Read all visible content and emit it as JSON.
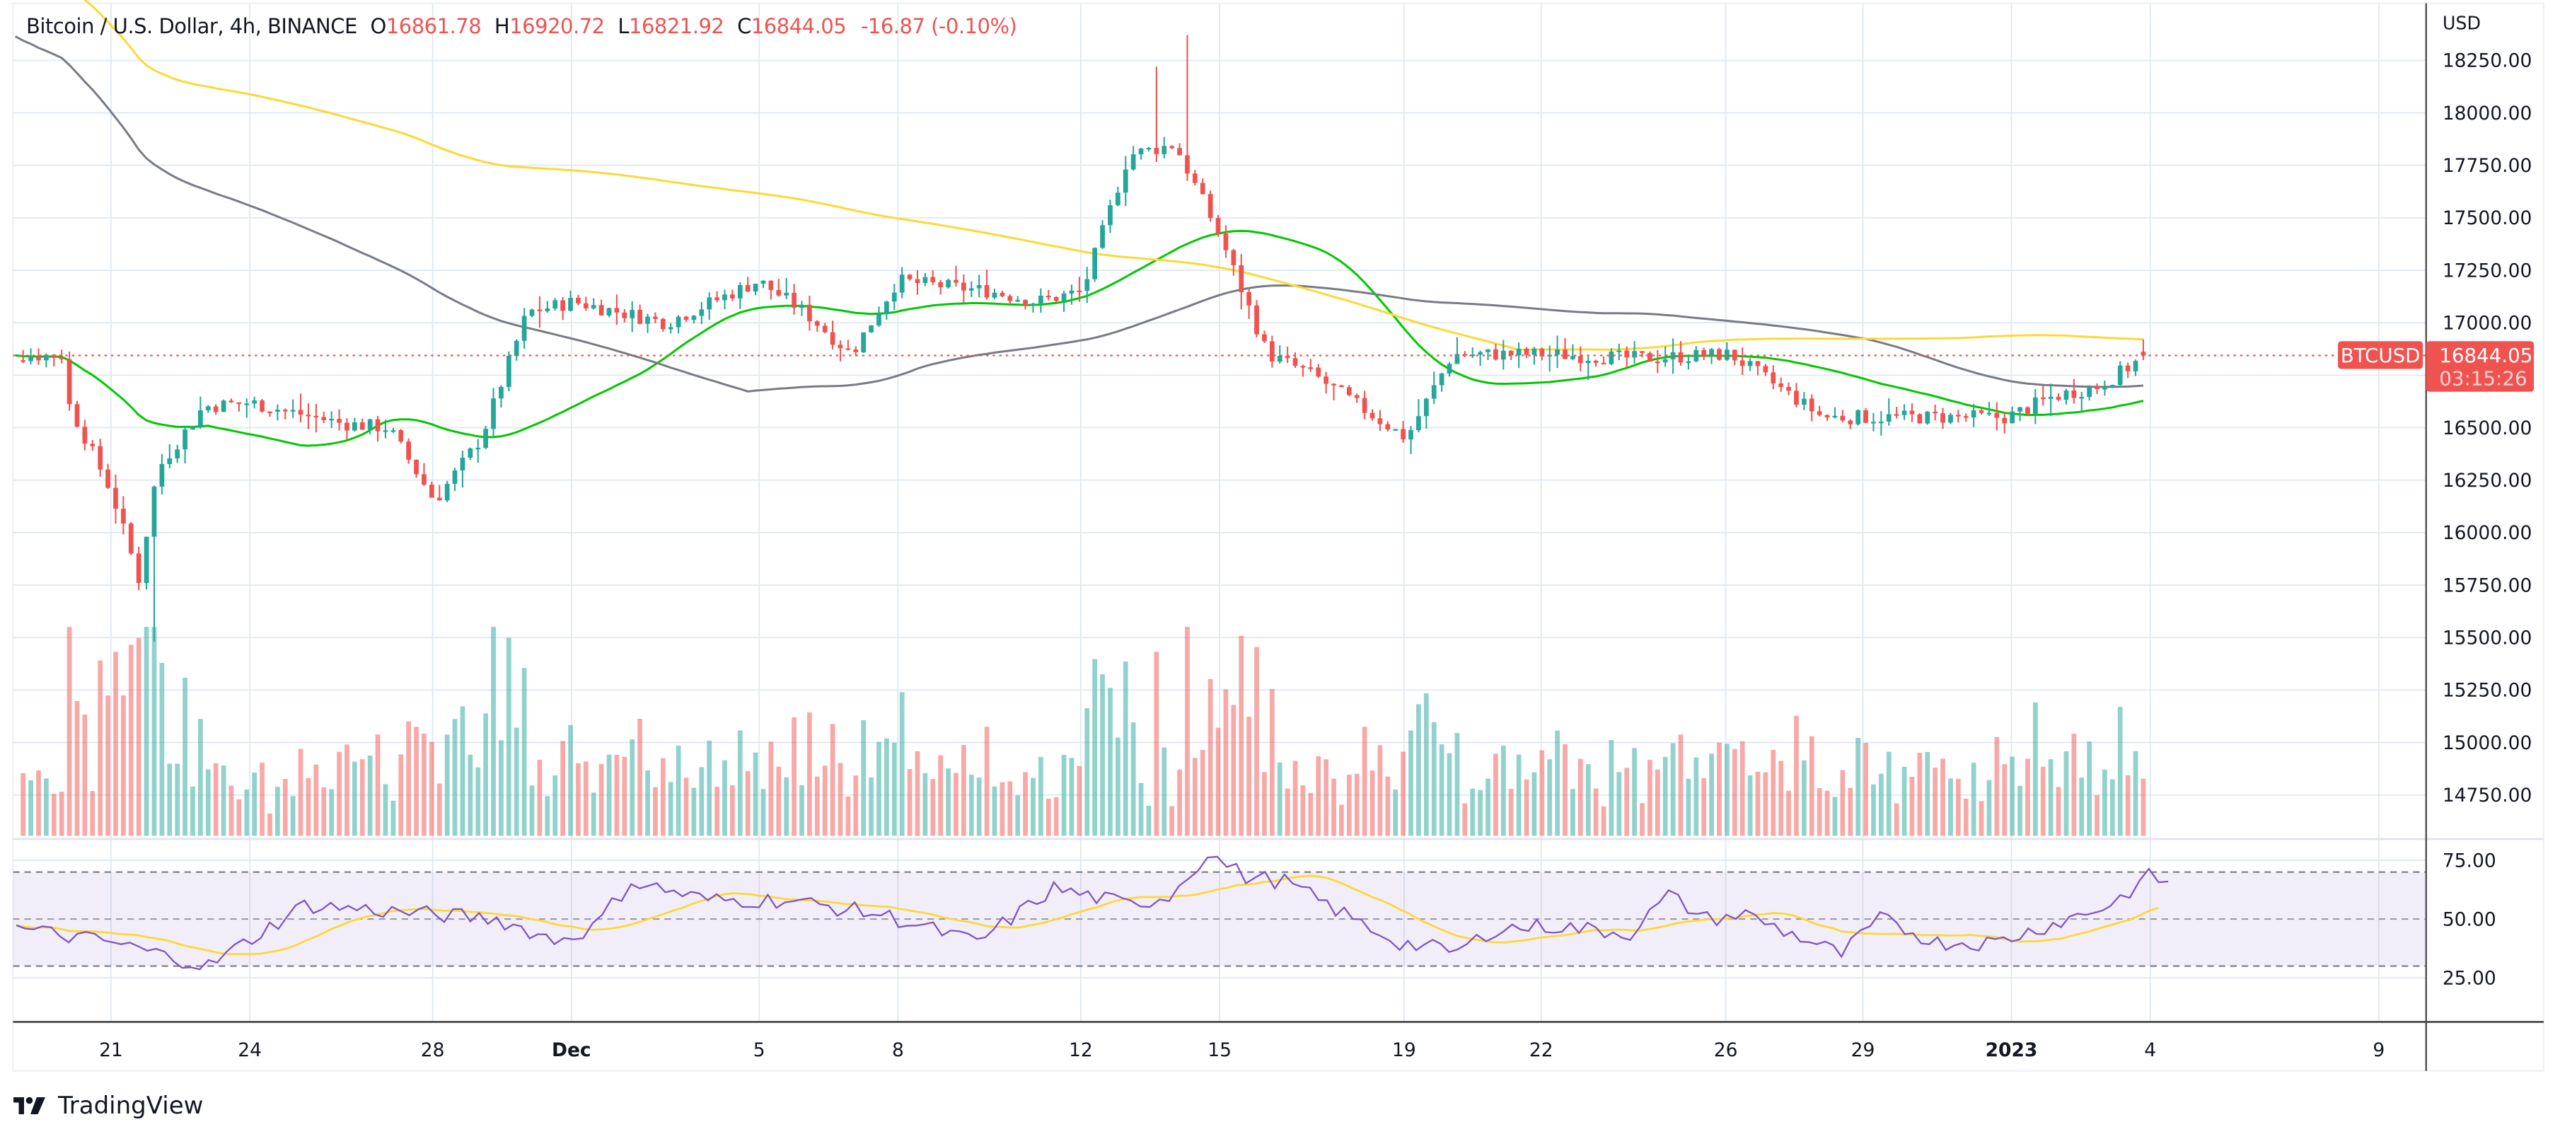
{
  "header": {
    "symbol_title": "Bitcoin / U.S. Dollar, 4h, BINANCE",
    "open_label": "O",
    "open": "16861.78",
    "high_label": "H",
    "high": "16920.72",
    "low_label": "L",
    "low": "16821.92",
    "close_label": "C",
    "close": "16844.05",
    "change": "-16.87 (-0.10%)"
  },
  "price_axis": {
    "currency": "USD",
    "ticks": [
      "18250.00",
      "18000.00",
      "17750.00",
      "17500.00",
      "17250.00",
      "17000.00",
      "16500.00",
      "16250.00",
      "16000.00",
      "15750.00",
      "15500.00",
      "15250.00",
      "15000.00",
      "14750.00"
    ],
    "last_price_label": "16844.05",
    "countdown": "03:15:26",
    "symbol_tag": "BTCUSD"
  },
  "rsi_axis": {
    "ticks": [
      "75.00",
      "50.00",
      "25.00"
    ]
  },
  "time_axis": {
    "ticks": [
      "21",
      "24",
      "28",
      "Dec",
      "5",
      "8",
      "12",
      "15",
      "19",
      "22",
      "26",
      "29",
      "2023",
      "4",
      "9"
    ],
    "bold": [
      "Dec",
      "2023"
    ]
  },
  "branding": {
    "logo_text": "TradingView"
  },
  "colors": {
    "up": "#26a69a",
    "down": "#ef5350",
    "up_vol": "#26a69a80",
    "down_vol": "#ef535080",
    "ma_green": "#00c800",
    "ma_gray": "#787b86",
    "ma_yellow": "#fdd835",
    "rsi_line": "#7e57c2",
    "rsi_ma": "#fdd835",
    "rsi_band": "#7e57c21a",
    "grid": "#e0e9f0",
    "axis_text": "#131722",
    "last_price": "#ef5350"
  },
  "chart_data": {
    "type": "candlestick",
    "title": "Bitcoin / U.S. Dollar, 4h, BINANCE",
    "xlabel": "",
    "ylabel": "USD",
    "ylim": [
      14700,
      18350
    ],
    "x_ticks": [
      "21",
      "24",
      "28",
      "Dec",
      "5",
      "8",
      "12",
      "15",
      "19",
      "22",
      "26",
      "29",
      "2023",
      "4",
      "9"
    ],
    "last": {
      "open": 16861.78,
      "high": 16920.72,
      "low": 16821.92,
      "close": 16844.05,
      "change": -16.87,
      "change_pct": -0.1
    },
    "key_levels": {
      "period_high": 18370,
      "period_low": 15480,
      "dec14_close_area": 17800,
      "jan4_close": 16844.05
    },
    "close_path_points": [
      [
        "Nov 20",
        16650
      ],
      [
        "Nov 21",
        16200
      ],
      [
        "Nov 21 late",
        15780
      ],
      [
        "Nov 22",
        16300
      ],
      [
        "Nov 23",
        16600
      ],
      [
        "Nov 24",
        16620
      ],
      [
        "Nov 26",
        16520
      ],
      [
        "Nov 27",
        16500
      ],
      [
        "Nov 28",
        16150
      ],
      [
        "Nov 29",
        16450
      ],
      [
        "Nov 30",
        17050
      ],
      [
        "Dec 1",
        17100
      ],
      [
        "Dec 3",
        17000
      ],
      [
        "Dec 4",
        17100
      ],
      [
        "Dec 5",
        17200
      ],
      [
        "Dec 6",
        17050
      ],
      [
        "Dec 7",
        16850
      ],
      [
        "Dec 8",
        17200
      ],
      [
        "Dec 10",
        17150
      ],
      [
        "Dec 11",
        17100
      ],
      [
        "Dec 12",
        17150
      ],
      [
        "Dec 13",
        17800
      ],
      [
        "Dec 14",
        17850
      ],
      [
        "Dec 15",
        17400
      ],
      [
        "Dec 16",
        16850
      ],
      [
        "Dec 17",
        16750
      ],
      [
        "Dec 19",
        16450
      ],
      [
        "Dec 20",
        16850
      ],
      [
        "Dec 21",
        16850
      ],
      [
        "Dec 22",
        16850
      ],
      [
        "Dec 24",
        16830
      ],
      [
        "Dec 26",
        16850
      ],
      [
        "Dec 27",
        16700
      ],
      [
        "Dec 28",
        16550
      ],
      [
        "Dec 30",
        16550
      ],
      [
        "Jan 1",
        16550
      ],
      [
        "Jan 2",
        16650
      ],
      [
        "Jan 3",
        16700
      ],
      [
        "Jan 4",
        16844
      ]
    ],
    "moving_averages": [
      {
        "name": "MA green (fast)",
        "color": "#00c800",
        "start": 16800,
        "end": 16640,
        "peak": 17280
      },
      {
        "name": "MA gray (mid)",
        "color": "#787b86",
        "start": 18300,
        "end": 16730
      },
      {
        "name": "MA yellow (slow)",
        "color": "#fdd835",
        "start": 18420,
        "end": 16920
      }
    ],
    "rsi": {
      "levels": {
        "upper": 70,
        "middle": 50,
        "lower": 30
      },
      "ylim": [
        10,
        90
      ],
      "last": 68,
      "path_points": [
        [
          0,
          46
        ],
        [
          5,
          40
        ],
        [
          10,
          30
        ],
        [
          15,
          56
        ],
        [
          20,
          53
        ],
        [
          25,
          50
        ],
        [
          28,
          41
        ],
        [
          30,
          46
        ],
        [
          32,
          66
        ],
        [
          36,
          58
        ],
        [
          40,
          58
        ],
        [
          45,
          52
        ],
        [
          50,
          40
        ],
        [
          54,
          63
        ],
        [
          58,
          56
        ],
        [
          60,
          60
        ],
        [
          62,
          78
        ],
        [
          64,
          68
        ],
        [
          66,
          66
        ],
        [
          70,
          48
        ],
        [
          72,
          40
        ],
        [
          75,
          36
        ],
        [
          77,
          46
        ],
        [
          80,
          47
        ],
        [
          84,
          44
        ],
        [
          86,
          60
        ],
        [
          88,
          50
        ],
        [
          90,
          52
        ],
        [
          92,
          45
        ],
        [
          95,
          35
        ],
        [
          97,
          50
        ],
        [
          100,
          40
        ],
        [
          103,
          40
        ],
        [
          106,
          48
        ],
        [
          109,
          56
        ],
        [
          111,
          68
        ],
        [
          112,
          66
        ]
      ]
    },
    "volume": {
      "note": "bars colored by candle direction; peaks near Nov 22 and Dec 13-14"
    }
  }
}
